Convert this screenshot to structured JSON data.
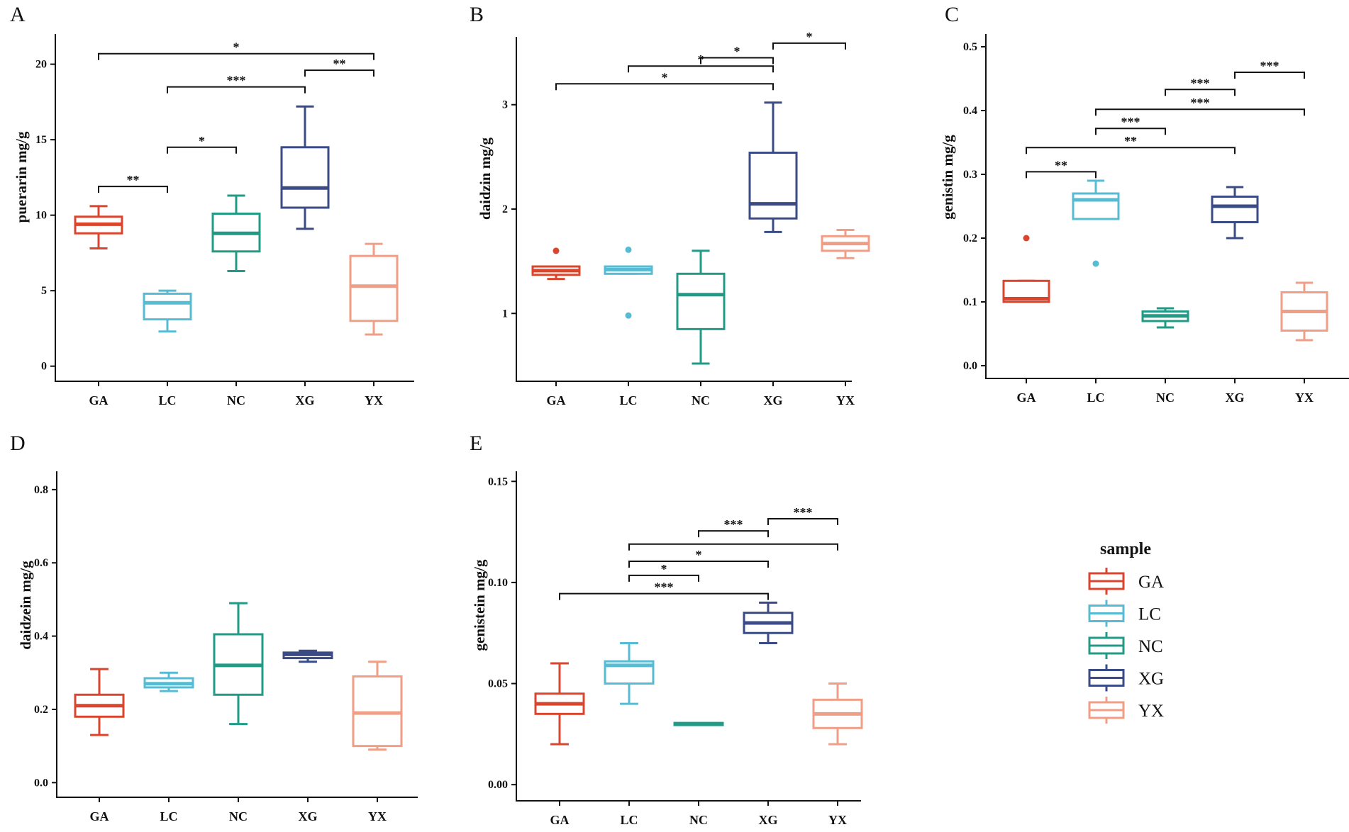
{
  "colors": {
    "GA": "#D9452D",
    "LC": "#57BCD3",
    "NC": "#219B85",
    "XG": "#3A4B85",
    "YX": "#F19E86"
  },
  "legend": {
    "title": "sample",
    "items": [
      "GA",
      "LC",
      "NC",
      "XG",
      "YX"
    ]
  },
  "chart_data": [
    {
      "panel": "A",
      "type": "box",
      "ylabel": "puerarin mg/g",
      "categories": [
        "GA",
        "LC",
        "NC",
        "XG",
        "YX"
      ],
      "ylim": [
        -1,
        22
      ],
      "yticks": [
        0,
        5,
        10,
        15,
        20
      ],
      "ytick_labels": [
        "0",
        "5",
        "10",
        "15",
        "20"
      ],
      "boxes": [
        {
          "group": "GA",
          "min": 7.8,
          "q1": 8.8,
          "median": 9.4,
          "q3": 9.9,
          "max": 10.6,
          "outliers": []
        },
        {
          "group": "LC",
          "min": 2.3,
          "q1": 3.1,
          "median": 4.2,
          "q3": 4.8,
          "max": 5.0,
          "outliers": []
        },
        {
          "group": "NC",
          "min": 6.3,
          "q1": 7.6,
          "median": 8.8,
          "q3": 10.1,
          "max": 11.3,
          "outliers": []
        },
        {
          "group": "XG",
          "min": 9.1,
          "q1": 10.5,
          "median": 11.8,
          "q3": 14.5,
          "max": 17.2,
          "outliers": []
        },
        {
          "group": "YX",
          "min": 2.1,
          "q1": 3.0,
          "median": 5.3,
          "q3": 7.3,
          "max": 8.1,
          "outliers": []
        }
      ],
      "significance": [
        {
          "from": "GA",
          "to": "YX",
          "y": 20.7,
          "label": "*"
        },
        {
          "from": "XG",
          "to": "YX",
          "y": 19.6,
          "label": "**"
        },
        {
          "from": "LC",
          "to": "XG",
          "y": 18.5,
          "label": "***"
        },
        {
          "from": "LC",
          "to": "NC",
          "y": 14.5,
          "label": "*"
        },
        {
          "from": "GA",
          "to": "LC",
          "y": 11.9,
          "label": "**"
        }
      ]
    },
    {
      "panel": "B",
      "type": "box",
      "ylabel": "daidzin mg/g",
      "categories": [
        "GA",
        "LC",
        "NC",
        "XG",
        "YX"
      ],
      "ylim": [
        0.35,
        3.65
      ],
      "yticks": [
        1,
        2,
        3
      ],
      "ytick_labels": [
        "1",
        "2",
        "3"
      ],
      "boxes": [
        {
          "group": "GA",
          "min": 1.33,
          "q1": 1.37,
          "median": 1.41,
          "q3": 1.45,
          "max": 1.45,
          "outliers": [
            1.6
          ]
        },
        {
          "group": "LC",
          "min": 1.38,
          "q1": 1.38,
          "median": 1.42,
          "q3": 1.45,
          "max": 1.45,
          "outliers": [
            1.61,
            0.98
          ]
        },
        {
          "group": "NC",
          "min": 0.52,
          "q1": 0.85,
          "median": 1.18,
          "q3": 1.38,
          "max": 1.6,
          "outliers": []
        },
        {
          "group": "XG",
          "min": 1.78,
          "q1": 1.91,
          "median": 2.05,
          "q3": 2.54,
          "max": 3.02,
          "outliers": []
        },
        {
          "group": "YX",
          "min": 1.53,
          "q1": 1.6,
          "median": 1.67,
          "q3": 1.74,
          "max": 1.8,
          "outliers": []
        }
      ],
      "significance": [
        {
          "from": "XG",
          "to": "YX",
          "y": 3.59,
          "label": "*"
        },
        {
          "from": "NC",
          "to": "XG",
          "y": 3.45,
          "label": "*"
        },
        {
          "from": "LC",
          "to": "XG",
          "y": 3.37,
          "label": "*"
        },
        {
          "from": "GA",
          "to": "XG",
          "y": 3.2,
          "label": "*"
        }
      ]
    },
    {
      "panel": "C",
      "type": "box",
      "ylabel": "genistin mg/g",
      "categories": [
        "GA",
        "LC",
        "NC",
        "XG",
        "YX"
      ],
      "ylim": [
        -0.02,
        0.52
      ],
      "yticks": [
        0,
        0.1,
        0.2,
        0.3,
        0.4,
        0.5
      ],
      "ytick_labels": [
        "0.0",
        "0.1",
        "0.2",
        "0.3",
        "0.4",
        "0.5"
      ],
      "boxes": [
        {
          "group": "GA",
          "min": 0.1,
          "q1": 0.1,
          "median": 0.105,
          "q3": 0.133,
          "max": 0.133,
          "outliers": [
            0.2
          ]
        },
        {
          "group": "LC",
          "min": 0.23,
          "q1": 0.23,
          "median": 0.26,
          "q3": 0.27,
          "max": 0.29,
          "outliers": [
            0.16
          ]
        },
        {
          "group": "NC",
          "min": 0.06,
          "q1": 0.07,
          "median": 0.078,
          "q3": 0.085,
          "max": 0.09,
          "outliers": []
        },
        {
          "group": "XG",
          "min": 0.2,
          "q1": 0.225,
          "median": 0.25,
          "q3": 0.265,
          "max": 0.28,
          "outliers": []
        },
        {
          "group": "YX",
          "min": 0.04,
          "q1": 0.055,
          "median": 0.085,
          "q3": 0.115,
          "max": 0.13,
          "outliers": []
        }
      ],
      "significance": [
        {
          "from": "XG",
          "to": "YX",
          "y": 0.46,
          "label": "***"
        },
        {
          "from": "NC",
          "to": "XG",
          "y": 0.433,
          "label": "***"
        },
        {
          "from": "LC",
          "to": "YX",
          "y": 0.402,
          "label": "***"
        },
        {
          "from": "LC",
          "to": "NC",
          "y": 0.372,
          "label": "***"
        },
        {
          "from": "GA",
          "to": "XG",
          "y": 0.342,
          "label": "**"
        },
        {
          "from": "GA",
          "to": "LC",
          "y": 0.304,
          "label": "**"
        }
      ]
    },
    {
      "panel": "D",
      "type": "box",
      "ylabel": "daidzein mg/g",
      "categories": [
        "GA",
        "LC",
        "NC",
        "XG",
        "YX"
      ],
      "ylim": [
        -0.04,
        0.85
      ],
      "yticks": [
        0,
        0.2,
        0.4,
        0.6,
        0.8
      ],
      "ytick_labels": [
        "0.0",
        "0.2",
        "0.4",
        "0.6",
        "0.8"
      ],
      "boxes": [
        {
          "group": "GA",
          "min": 0.13,
          "q1": 0.18,
          "median": 0.21,
          "q3": 0.24,
          "max": 0.31,
          "outliers": []
        },
        {
          "group": "LC",
          "min": 0.25,
          "q1": 0.26,
          "median": 0.27,
          "q3": 0.285,
          "max": 0.3,
          "outliers": []
        },
        {
          "group": "NC",
          "min": 0.16,
          "q1": 0.24,
          "median": 0.32,
          "q3": 0.405,
          "max": 0.49,
          "outliers": []
        },
        {
          "group": "XG",
          "min": 0.33,
          "q1": 0.34,
          "median": 0.35,
          "q3": 0.355,
          "max": 0.36,
          "outliers": []
        },
        {
          "group": "YX",
          "min": 0.09,
          "q1": 0.1,
          "median": 0.19,
          "q3": 0.29,
          "max": 0.33,
          "outliers": []
        }
      ],
      "significance": []
    },
    {
      "panel": "E",
      "type": "box",
      "ylabel": "genistein mg/g",
      "categories": [
        "GA",
        "LC",
        "NC",
        "XG",
        "YX"
      ],
      "ylim": [
        -0.008,
        0.155
      ],
      "yticks": [
        0,
        0.05,
        0.1,
        0.15
      ],
      "ytick_labels": [
        "0.00",
        "0.05",
        "0.10",
        "0.15"
      ],
      "boxes": [
        {
          "group": "GA",
          "min": 0.02,
          "q1": 0.035,
          "median": 0.04,
          "q3": 0.045,
          "max": 0.06,
          "outliers": []
        },
        {
          "group": "LC",
          "min": 0.04,
          "q1": 0.05,
          "median": 0.059,
          "q3": 0.061,
          "max": 0.07,
          "outliers": []
        },
        {
          "group": "NC",
          "min": 0.03,
          "q1": 0.03,
          "median": 0.03,
          "q3": 0.03,
          "max": 0.03,
          "outliers": []
        },
        {
          "group": "XG",
          "min": 0.07,
          "q1": 0.075,
          "median": 0.08,
          "q3": 0.085,
          "max": 0.09,
          "outliers": []
        },
        {
          "group": "YX",
          "min": 0.02,
          "q1": 0.028,
          "median": 0.035,
          "q3": 0.042,
          "max": 0.05,
          "outliers": []
        }
      ],
      "significance": [
        {
          "from": "XG",
          "to": "YX",
          "y": 0.1315,
          "label": "***"
        },
        {
          "from": "NC",
          "to": "XG",
          "y": 0.1255,
          "label": "***"
        },
        {
          "from": "LC",
          "to": "YX",
          "y": 0.119,
          "label": ""
        },
        {
          "from": "LC",
          "to": "XG",
          "y": 0.1105,
          "label": "*"
        },
        {
          "from": "LC",
          "to": "NC",
          "y": 0.1035,
          "label": "*"
        },
        {
          "from": "GA",
          "to": "XG",
          "y": 0.0945,
          "label": "***"
        }
      ]
    }
  ]
}
